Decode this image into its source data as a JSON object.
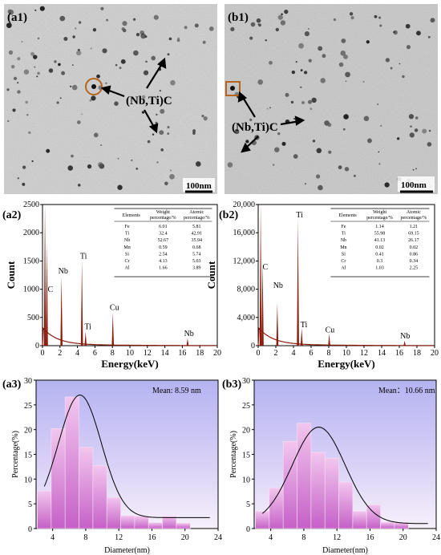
{
  "panels": {
    "a1": {
      "label": "(a1)",
      "annotation": "(Nb,Ti)C",
      "scale": "100nm"
    },
    "b1": {
      "label": "(b1)",
      "annotation": "(Nb,Ti)C",
      "scale": "100nm"
    }
  },
  "colors": {
    "spectrum": "#8b1a0a",
    "hist_fill": "#e8a0e0",
    "hist_bg_top": "#b8b8f0",
    "fit": "#000000",
    "marker": "#b5651d"
  },
  "chart_data": [
    {
      "id": "a2",
      "label": "(a2)",
      "type": "line",
      "xlabel": "Energy(keV)",
      "ylabel": "Count",
      "xlim": [
        0,
        20
      ],
      "ylim": [
        0,
        2500
      ],
      "xticks": [
        "0",
        "2",
        "4",
        "6",
        "8",
        "10",
        "12",
        "14",
        "16",
        "18",
        "20"
      ],
      "yticks": [
        "0",
        "500",
        "1000",
        "1500",
        "2000",
        "2500"
      ],
      "peaks": [
        {
          "x": 0.28,
          "y": 2500,
          "name": "C"
        },
        {
          "x": 0.5,
          "y": 1800,
          "name": ""
        },
        {
          "x": 2.17,
          "y": 1240,
          "name": "Nb"
        },
        {
          "x": 4.51,
          "y": 1500,
          "name": "Ti"
        },
        {
          "x": 4.93,
          "y": 250,
          "name": "Ti"
        },
        {
          "x": 8.05,
          "y": 590,
          "name": "Cu"
        },
        {
          "x": 16.6,
          "y": 130,
          "name": "Nb"
        }
      ],
      "peak_labels": [
        {
          "text": "C",
          "x": 0.6,
          "y": 950
        },
        {
          "text": "Nb",
          "x": 1.8,
          "y": 1280
        },
        {
          "text": "Ti",
          "x": 4.3,
          "y": 1540
        },
        {
          "text": "Ti",
          "x": 4.8,
          "y": 290
        },
        {
          "text": "Cu",
          "x": 7.7,
          "y": 630
        },
        {
          "text": "Nb",
          "x": 16.2,
          "y": 170
        }
      ],
      "table": {
        "headers": [
          "Elements",
          "Weight percentage/%",
          "Atomic percentage/%"
        ],
        "rows": [
          [
            "Fe",
            "6.01",
            "5.81"
          ],
          [
            "Ti",
            "32.4",
            "42.91"
          ],
          [
            "Nb",
            "52.67",
            "35.94"
          ],
          [
            "Mn",
            "0.59",
            "0.68"
          ],
          [
            "Si",
            "2.54",
            "5.74"
          ],
          [
            "Cr",
            "4.13",
            "5.03"
          ],
          [
            "Al",
            "1.66",
            "3.89"
          ]
        ]
      }
    },
    {
      "id": "b2",
      "label": "(b2)",
      "type": "line",
      "xlabel": "Energy(keV)",
      "ylabel": "Count",
      "xlim": [
        0,
        20
      ],
      "ylim": [
        0,
        20000
      ],
      "xticks": [
        "0",
        "2",
        "4",
        "6",
        "8",
        "10",
        "12",
        "14",
        "16",
        "18",
        "20"
      ],
      "yticks": [
        "0",
        "4,000",
        "8,000",
        "12,000",
        "16,000",
        "20,000"
      ],
      "peaks": [
        {
          "x": 0.28,
          "y": 20000,
          "name": "C"
        },
        {
          "x": 0.5,
          "y": 12000,
          "name": ""
        },
        {
          "x": 2.17,
          "y": 6000,
          "name": "Nb"
        },
        {
          "x": 4.51,
          "y": 18000,
          "name": "Ti"
        },
        {
          "x": 4.93,
          "y": 2500,
          "name": "Ti"
        },
        {
          "x": 8.05,
          "y": 1700,
          "name": "Cu"
        },
        {
          "x": 16.6,
          "y": 700,
          "name": "Nb"
        }
      ],
      "peak_labels": [
        {
          "text": "C",
          "x": 0.5,
          "y": 10800
        },
        {
          "text": "Nb",
          "x": 1.7,
          "y": 8200
        },
        {
          "text": "Ti",
          "x": 4.3,
          "y": 18200
        },
        {
          "text": "Ti",
          "x": 4.8,
          "y": 2600
        },
        {
          "text": "Cu",
          "x": 7.6,
          "y": 1900
        },
        {
          "text": "Nb",
          "x": 16.1,
          "y": 1000
        }
      ],
      "table": {
        "headers": [
          "Elements",
          "Weight percentage/%",
          "Atomic percentage/%"
        ],
        "rows": [
          [
            "Fe",
            "1.14",
            "1.21"
          ],
          [
            "Ti",
            "55.98",
            "69.15"
          ],
          [
            "Nb",
            "41.13",
            "26.17"
          ],
          [
            "Mn",
            "0.02",
            "0.02"
          ],
          [
            "Si",
            "0.41",
            "0.86"
          ],
          [
            "Cr",
            "0.3",
            "0.34"
          ],
          [
            "Al",
            "1.03",
            "2.25"
          ]
        ]
      }
    },
    {
      "id": "a3",
      "label": "(a3)",
      "type": "bar",
      "xlabel": "Diameter(nm)",
      "ylabel": "Percentage(%)",
      "mean_text": "Mean: 8.59 nm",
      "xlim": [
        2,
        24
      ],
      "ylim": [
        0,
        30
      ],
      "xticks": [
        "4",
        "8",
        "12",
        "16",
        "20",
        "24"
      ],
      "yticks": [
        "0",
        "5",
        "10",
        "15",
        "20",
        "25",
        "30"
      ],
      "bin_width": 1.68,
      "bin_start": 2.15,
      "values": [
        7.6,
        20.2,
        26.6,
        16.4,
        12.7,
        6.3,
        2.6,
        2.5,
        1.2,
        2.5,
        1.1
      ],
      "fit": {
        "mu": 7.3,
        "sigma": 2.6,
        "amp": 24.8,
        "base": 2.2
      }
    },
    {
      "id": "b3",
      "label": "(b3)",
      "type": "bar",
      "xlabel": "Diameter(nm)",
      "ylabel": "Percentage(%)",
      "mean_text": "Mean：10.66 nm",
      "xlim": [
        2,
        24
      ],
      "ylim": [
        0,
        30
      ],
      "xticks": [
        "4",
        "8",
        "12",
        "16",
        "20",
        "24"
      ],
      "yticks": [
        "0",
        "5",
        "10",
        "15",
        "20",
        "25",
        "30"
      ],
      "bin_width": 1.68,
      "bin_start": 2.15,
      "values": [
        3.5,
        8.2,
        17.6,
        21.3,
        15.4,
        14.2,
        9.4,
        3.5,
        4.8,
        1.3,
        1.2
      ],
      "fit": {
        "mu": 9.8,
        "sigma": 3.2,
        "amp": 19.5,
        "base": 1.0
      }
    }
  ]
}
